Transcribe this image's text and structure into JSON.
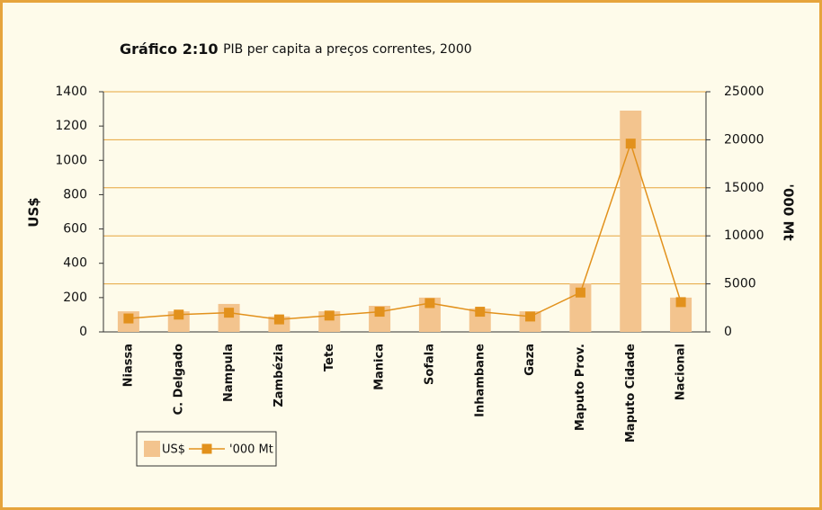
{
  "chart_data": {
    "type": "bar_line",
    "title": "Gráfico 2:10",
    "subtitle": "PIB per capita a preços correntes, 2000",
    "categories": [
      "Niassa",
      "C. Delgado",
      "Nampula",
      "Zambézia",
      "Tete",
      "Manica",
      "Sofala",
      "Inhambane",
      "Gaza",
      "Maputo Prov.",
      "Maputo Cidade",
      "Nacional"
    ],
    "series": [
      {
        "name": "US$",
        "type": "bar",
        "color": "#f3c48e",
        "values": [
          120,
          120,
          163,
          90,
          120,
          152,
          200,
          136,
          120,
          283,
          1290,
          200
        ]
      },
      {
        "name": "'000 Mt",
        "type": "line",
        "axis": "y2",
        "color": "#e2911c",
        "values": [
          1400,
          1800,
          2000,
          1300,
          1700,
          2100,
          3000,
          2100,
          1600,
          4100,
          19600,
          3100
        ]
      }
    ],
    "ylabel": "US$",
    "y2label": "'000 Mt",
    "ylim": [
      0,
      1400
    ],
    "yticks": [
      0,
      200,
      400,
      600,
      800,
      1000,
      1200,
      1400
    ],
    "y2lim": [
      0,
      25000
    ],
    "y2ticks": [
      0,
      5000,
      10000,
      15000,
      20000,
      25000
    ],
    "grid": "y2",
    "legend": "bottom-left"
  }
}
